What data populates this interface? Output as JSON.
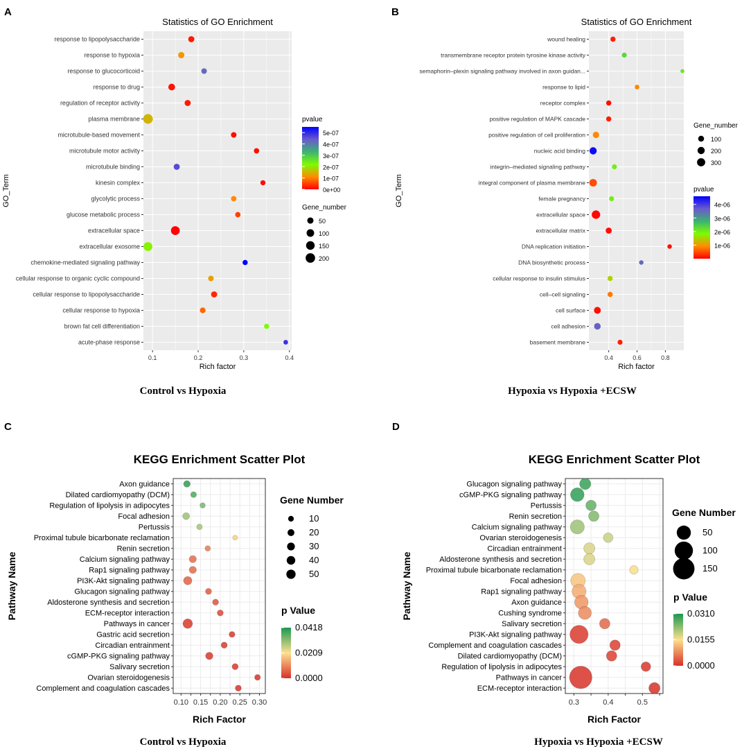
{
  "chart_data": [
    {
      "id": "A",
      "panel_label": "A",
      "type": "scatter",
      "title": "Statistics of GO Enrichment",
      "xlabel": "Rich factor",
      "ylabel": "GO_Term",
      "caption": "Control vs Hypoxia",
      "xlim": [
        0.08,
        0.405
      ],
      "xticks": [
        0.1,
        0.2,
        0.3,
        0.4
      ],
      "xtick_labels": [
        "0.1",
        "0.2",
        "0.3",
        "0.4"
      ],
      "size_legend": {
        "title": "Gene_number",
        "values": [
          50,
          100,
          150,
          200
        ],
        "labels": [
          "50",
          "100",
          "150",
          "200"
        ]
      },
      "color_legend": {
        "title": "pvalue",
        "min": 0,
        "max": 5.5e-07,
        "ticks": [
          0,
          1e-07,
          2e-07,
          3e-07,
          4e-07,
          5e-07
        ],
        "tick_labels": [
          "0e+00",
          "1e-07",
          "2e-07",
          "3e-07",
          "4e-07",
          "5e-07"
        ],
        "colors": [
          "#ff0000",
          "#ff8c00",
          "#7cfc00",
          "#3cb371",
          "#6a5acd",
          "#0000ff"
        ]
      },
      "points": [
        {
          "term": "response to lipopolysaccharide",
          "x": 0.185,
          "gene": 45,
          "p": 2e-08
        },
        {
          "term": "response to hypoxia",
          "x": 0.163,
          "gene": 50,
          "p": 1.2e-07
        },
        {
          "term": "response to glucocorticoid",
          "x": 0.213,
          "gene": 30,
          "p": 4.2e-07
        },
        {
          "term": "response to drug",
          "x": 0.142,
          "gene": 65,
          "p": 1.5e-08
        },
        {
          "term": "regulation of receptor activity",
          "x": 0.177,
          "gene": 45,
          "p": 2e-08
        },
        {
          "term": "plasma membrane",
          "x": 0.09,
          "gene": 210,
          "p": 1.5e-07
        },
        {
          "term": "microtubule-based movement",
          "x": 0.278,
          "gene": 30,
          "p": 1e-08
        },
        {
          "term": "microtubule motor activity",
          "x": 0.328,
          "gene": 25,
          "p": 1e-08
        },
        {
          "term": "microtubule binding",
          "x": 0.153,
          "gene": 45,
          "p": 4.6e-07
        },
        {
          "term": "kinesin complex",
          "x": 0.342,
          "gene": 20,
          "p": 1e-08
        },
        {
          "term": "glycolytic process",
          "x": 0.278,
          "gene": 28,
          "p": 1.1e-07
        },
        {
          "term": "glucose metabolic process",
          "x": 0.287,
          "gene": 25,
          "p": 5e-08
        },
        {
          "term": "extracellular space",
          "x": 0.15,
          "gene": 160,
          "p": 1e-09
        },
        {
          "term": "extracellular exosome",
          "x": 0.09,
          "gene": 165,
          "p": 2.1e-07
        },
        {
          "term": "chemokine-mediated signaling pathway",
          "x": 0.303,
          "gene": 22,
          "p": 5.5e-07
        },
        {
          "term": "cellular response to organic cyclic compound",
          "x": 0.228,
          "gene": 30,
          "p": 1.3e-07
        },
        {
          "term": "cellular response to lipopolysaccharide",
          "x": 0.235,
          "gene": 45,
          "p": 3e-08
        },
        {
          "term": "cellular response to hypoxia",
          "x": 0.21,
          "gene": 35,
          "p": 8e-08
        },
        {
          "term": "brown fat cell differentiation",
          "x": 0.35,
          "gene": 20,
          "p": 2.2e-07
        },
        {
          "term": "acute-phase response",
          "x": 0.392,
          "gene": 12,
          "p": 4.9e-07
        }
      ]
    },
    {
      "id": "B",
      "panel_label": "B",
      "type": "scatter",
      "title": "Statistics of GO Enrichment",
      "xlabel": "Rich factor",
      "ylabel": "GO_Term",
      "caption": "Hypoxia vs Hypoxia +ECSW",
      "xlim": [
        0.26,
        0.93
      ],
      "xticks": [
        0.4,
        0.6,
        0.8
      ],
      "xtick_labels": [
        "0.4",
        "0.6",
        "0.8"
      ],
      "size_legend": {
        "title": "Gene_number",
        "values": [
          100,
          200,
          300
        ],
        "labels": [
          "100",
          "200",
          "300"
        ]
      },
      "color_legend": {
        "title": "pvalue",
        "min": 0,
        "max": 4.6e-06,
        "ticks": [
          1e-06,
          2e-06,
          3e-06,
          4e-06
        ],
        "tick_labels": [
          "1e-06",
          "2e-06",
          "3e-06",
          "4e-06"
        ],
        "colors": [
          "#ff0000",
          "#ff8c00",
          "#7cfc00",
          "#3cb371",
          "#6a5acd",
          "#0000ff"
        ]
      },
      "points": [
        {
          "term": "wound healing",
          "x": 0.43,
          "gene": 60,
          "p": 2e-07
        },
        {
          "term": "transmembrane receptor protein tyrosine kinase activity",
          "x": 0.51,
          "gene": 50,
          "p": 2.3e-06
        },
        {
          "term": "semaphorin–plexin signaling pathway involved in axon guidan...",
          "x": 0.92,
          "gene": 15,
          "p": 2.1e-06
        },
        {
          "term": "response to lipid",
          "x": 0.6,
          "gene": 35,
          "p": 9e-07
        },
        {
          "term": "receptor complex",
          "x": 0.4,
          "gene": 60,
          "p": 1e-07
        },
        {
          "term": "positive regulation of MAPK cascade",
          "x": 0.4,
          "gene": 60,
          "p": 2e-07
        },
        {
          "term": "positive regulation of cell proliferation",
          "x": 0.31,
          "gene": 130,
          "p": 9e-07
        },
        {
          "term": "nucleic acid binding",
          "x": 0.29,
          "gene": 200,
          "p": 4.5e-06
        },
        {
          "term": "integrin–mediated signaling pathway",
          "x": 0.44,
          "gene": 50,
          "p": 2e-06
        },
        {
          "term": "integral component of plasma membrane",
          "x": 0.29,
          "gene": 230,
          "p": 5e-07
        },
        {
          "term": "female pregnancy",
          "x": 0.42,
          "gene": 50,
          "p": 2e-06
        },
        {
          "term": "extracellular space",
          "x": 0.31,
          "gene": 330,
          "p": 5e-08
        },
        {
          "term": "extracellular matrix",
          "x": 0.4,
          "gene": 110,
          "p": 1e-07
        },
        {
          "term": "DNA replication initiation",
          "x": 0.83,
          "gene": 30,
          "p": 1e-07
        },
        {
          "term": "DNA biosynthetic process",
          "x": 0.63,
          "gene": 30,
          "p": 3.5e-06
        },
        {
          "term": "cellular response to insulin stimulus",
          "x": 0.41,
          "gene": 60,
          "p": 1.5e-06
        },
        {
          "term": "cell–cell signaling",
          "x": 0.41,
          "gene": 60,
          "p": 8e-07
        },
        {
          "term": "cell surface",
          "x": 0.32,
          "gene": 170,
          "p": 1e-07
        },
        {
          "term": "cell adhesion",
          "x": 0.32,
          "gene": 150,
          "p": 3.6e-06
        },
        {
          "term": "basement membrane",
          "x": 0.48,
          "gene": 50,
          "p": 2e-07
        }
      ]
    },
    {
      "id": "C",
      "panel_label": "C",
      "type": "scatter",
      "title": "KEGG Enrichment Scatter Plot",
      "xlabel": "Rich Factor",
      "ylabel": "Pathway Name",
      "caption": "Control vs Hypoxia",
      "xlim": [
        0.08,
        0.315
      ],
      "xticks": [
        0.1,
        0.125,
        0.15,
        0.175,
        0.2,
        0.225,
        0.25,
        0.275,
        0.3
      ],
      "xtick_labels": [
        "0.10",
        "",
        "0.15",
        "",
        "0.20",
        "",
        "0.25",
        "",
        "0.30"
      ],
      "size_legend": {
        "title": "Gene Number",
        "values": [
          10,
          20,
          30,
          40,
          50
        ],
        "labels": [
          "10",
          "20",
          "30",
          "40",
          "50"
        ]
      },
      "color_legend": {
        "title": "p Value",
        "min": 0,
        "max": 0.0418,
        "ticks": [
          0,
          0.0209,
          0.0418
        ],
        "tick_labels": [
          "0.0000",
          "0.0209",
          "0.0418"
        ],
        "colors": [
          "#d73027",
          "#fee090",
          "#1a9850"
        ]
      },
      "points": [
        {
          "term": "Axon guidance",
          "x": 0.115,
          "gene": 18,
          "p": 0.04
        },
        {
          "term": "Dilated cardiomyopathy (DCM)",
          "x": 0.132,
          "gene": 11,
          "p": 0.037
        },
        {
          "term": "Regulation of lipolysis in adipocytes",
          "x": 0.155,
          "gene": 8,
          "p": 0.033
        },
        {
          "term": "Focal adhesion",
          "x": 0.113,
          "gene": 21,
          "p": 0.03
        },
        {
          "term": "Pertussis",
          "x": 0.147,
          "gene": 10,
          "p": 0.029
        },
        {
          "term": "Proximal tubule bicarbonate reclamation",
          "x": 0.238,
          "gene": 5,
          "p": 0.019
        },
        {
          "term": "Renin secretion",
          "x": 0.168,
          "gene": 9,
          "p": 0.009
        },
        {
          "term": "Calcium signaling pathway",
          "x": 0.13,
          "gene": 23,
          "p": 0.007
        },
        {
          "term": "Rap1 signaling pathway",
          "x": 0.13,
          "gene": 23,
          "p": 0.007
        },
        {
          "term": "PI3K-Akt signaling pathway",
          "x": 0.117,
          "gene": 37,
          "p": 0.006
        },
        {
          "term": "Glucagon signaling pathway",
          "x": 0.17,
          "gene": 13,
          "p": 0.005
        },
        {
          "term": "Aldosterone synthesis and secretion",
          "x": 0.188,
          "gene": 13,
          "p": 0.004
        },
        {
          "term": "ECM-receptor interaction",
          "x": 0.2,
          "gene": 13,
          "p": 0.003
        },
        {
          "term": "Pathways in cancer",
          "x": 0.117,
          "gene": 55,
          "p": 0.001
        },
        {
          "term": "Gastric acid secretion",
          "x": 0.23,
          "gene": 12,
          "p": 0.001
        },
        {
          "term": "Circadian entrainment",
          "x": 0.21,
          "gene": 14,
          "p": 0.001
        },
        {
          "term": "cGMP-PKG signaling pathway",
          "x": 0.172,
          "gene": 25,
          "p": 0.001
        },
        {
          "term": "Salivary secretion",
          "x": 0.238,
          "gene": 14,
          "p": 0.001
        },
        {
          "term": "Ovarian steroidogenesis",
          "x": 0.295,
          "gene": 11,
          "p": 0.0005
        },
        {
          "term": "Complement and coagulation cascades",
          "x": 0.246,
          "gene": 13,
          "p": 0.0005
        }
      ]
    },
    {
      "id": "D",
      "panel_label": "D",
      "type": "scatter",
      "title": "KEGG Enrichment Scatter Plot",
      "xlabel": "Rich Factor",
      "ylabel": "Pathway Name",
      "caption": "Hypoxia vs Hypoxia +ECSW",
      "xlim": [
        0.275,
        0.56
      ],
      "xticks": [
        0.3,
        0.35,
        0.4,
        0.45,
        0.5,
        0.55
      ],
      "xtick_labels": [
        "0.3",
        "",
        "0.4",
        "",
        "0.5",
        ""
      ],
      "size_legend": {
        "title": "Gene Number",
        "values": [
          50,
          100,
          150
        ],
        "labels": [
          "50",
          "100",
          "150"
        ]
      },
      "color_legend": {
        "title": "p Value",
        "min": 0,
        "max": 0.031,
        "ticks": [
          0,
          0.0155,
          0.031
        ],
        "tick_labels": [
          "0.0000",
          "0.0155",
          "0.0310"
        ],
        "colors": [
          "#d73027",
          "#fee090",
          "#1a9850"
        ]
      },
      "points": [
        {
          "term": "Glucagon signaling pathway",
          "x": 0.333,
          "gene": 25,
          "p": 0.029
        },
        {
          "term": "cGMP-PKG signaling pathway",
          "x": 0.31,
          "gene": 45,
          "p": 0.0295
        },
        {
          "term": "Pertussis",
          "x": 0.35,
          "gene": 20,
          "p": 0.026
        },
        {
          "term": "Renin secretion",
          "x": 0.358,
          "gene": 20,
          "p": 0.024
        },
        {
          "term": "Calcium signaling pathway",
          "x": 0.31,
          "gene": 50,
          "p": 0.022
        },
        {
          "term": "Ovarian steroidogenesis",
          "x": 0.4,
          "gene": 15,
          "p": 0.019
        },
        {
          "term": "Circadian entrainment",
          "x": 0.345,
          "gene": 25,
          "p": 0.018
        },
        {
          "term": "Aldosterone synthesis and secretion",
          "x": 0.345,
          "gene": 25,
          "p": 0.018
        },
        {
          "term": "Proximal tubule bicarbonate reclamation",
          "x": 0.475,
          "gene": 10,
          "p": 0.016
        },
        {
          "term": "Focal adhesion",
          "x": 0.312,
          "gene": 55,
          "p": 0.013
        },
        {
          "term": "Rap1 signaling pathway",
          "x": 0.315,
          "gene": 50,
          "p": 0.011
        },
        {
          "term": "Axon guidance",
          "x": 0.322,
          "gene": 45,
          "p": 0.009
        },
        {
          "term": "Cushing syndrome",
          "x": 0.332,
          "gene": 40,
          "p": 0.008
        },
        {
          "term": "Salivary secretion",
          "x": 0.39,
          "gene": 20,
          "p": 0.005
        },
        {
          "term": "PI3K-Akt signaling pathway",
          "x": 0.315,
          "gene": 100,
          "p": 0.001
        },
        {
          "term": "Complement and coagulation cascades",
          "x": 0.42,
          "gene": 20,
          "p": 0.0015
        },
        {
          "term": "Dilated cardiomyopathy (DCM)",
          "x": 0.41,
          "gene": 20,
          "p": 0.0015
        },
        {
          "term": "Regulation of lipolysis in adipocytes",
          "x": 0.51,
          "gene": 15,
          "p": 0.0005
        },
        {
          "term": "Pathways in cancer",
          "x": 0.32,
          "gene": 170,
          "p": 0.0003
        },
        {
          "term": "ECM-receptor interaction",
          "x": 0.535,
          "gene": 25,
          "p": 0.0001
        }
      ]
    }
  ]
}
